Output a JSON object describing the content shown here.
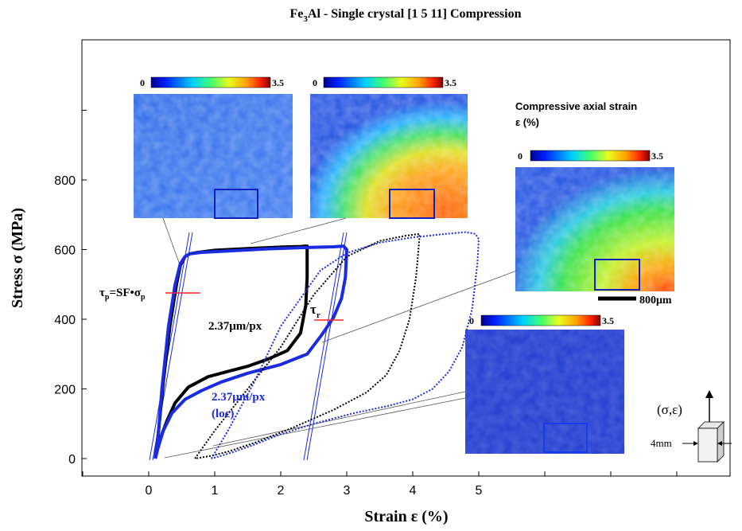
{
  "chart_data": {
    "type": "line",
    "title_main": "Fe",
    "title_sub": "3",
    "title_rest": "Al - Single crystal [1 5 11] Compression",
    "xlabel": "Strain ε (%)",
    "ylabel": "Stress σ (MPa)",
    "xlim": [
      -1,
      8.2
    ],
    "ylim": [
      -50,
      1100
    ],
    "xticks": [
      0,
      1,
      2,
      3,
      4,
      5
    ],
    "yticks": [
      0,
      200,
      400,
      600,
      800
    ],
    "series": [
      {
        "name": "2.37μm/px",
        "color": "#000000",
        "style": "solid",
        "x": [
          0.1,
          0.12,
          0.15,
          0.22,
          0.32,
          0.42,
          0.48,
          0.55,
          0.62,
          0.75,
          1.0,
          1.5,
          2.0,
          2.3,
          2.4,
          2.4,
          2.38,
          2.3,
          2.1,
          1.8,
          1.5,
          1.2,
          0.9,
          0.6,
          0.4,
          0.28,
          0.18,
          0.12,
          0.1
        ],
        "y": [
          0,
          30,
          80,
          220,
          380,
          500,
          555,
          580,
          588,
          592,
          598,
          603,
          607,
          609,
          610,
          520,
          440,
          360,
          310,
          285,
          265,
          250,
          235,
          205,
          160,
          110,
          60,
          20,
          0
        ]
      },
      {
        "name": "2.37μm/px (loc)",
        "color": "#1a2be0",
        "style": "solid",
        "x": [
          0.1,
          0.12,
          0.15,
          0.2,
          0.3,
          0.4,
          0.48,
          0.55,
          0.62,
          0.8,
          1.2,
          1.8,
          2.4,
          2.8,
          2.95,
          3.0,
          2.98,
          2.92,
          2.8,
          2.62,
          2.4,
          2.0,
          1.5,
          1.1,
          0.8,
          0.55,
          0.35,
          0.22,
          0.14,
          0.1
        ],
        "y": [
          0,
          30,
          80,
          200,
          380,
          500,
          560,
          580,
          588,
          592,
          596,
          602,
          606,
          608,
          610,
          600,
          520,
          460,
          405,
          355,
          300,
          270,
          245,
          220,
          195,
          170,
          130,
          80,
          30,
          0
        ]
      },
      {
        "name": "dotted black",
        "color": "#000000",
        "style": "dotted",
        "x": [
          0.7,
          1.0,
          1.5,
          2.0,
          2.5,
          3.0,
          3.5,
          3.9,
          4.1,
          4.1,
          4.05,
          3.95,
          3.8,
          3.6,
          3.3,
          2.8,
          2.2,
          1.6,
          1.2,
          0.95,
          0.8,
          0.7
        ],
        "y": [
          0,
          80,
          200,
          320,
          470,
          580,
          625,
          640,
          645,
          630,
          520,
          400,
          310,
          240,
          190,
          140,
          90,
          45,
          20,
          8,
          3,
          0
        ]
      },
      {
        "name": "dotted blue",
        "color": "#1a2be0",
        "style": "dotted",
        "x": [
          0.95,
          1.2,
          1.6,
          2.0,
          2.6,
          3.0,
          3.5,
          4.0,
          4.5,
          4.8,
          4.95,
          5.0,
          4.98,
          4.9,
          4.75,
          4.55,
          4.3,
          4.0,
          3.6,
          3.1,
          2.5,
          2.0,
          1.6,
          1.3,
          1.1,
          0.95
        ],
        "y": [
          0,
          80,
          220,
          380,
          540,
          590,
          620,
          635,
          645,
          650,
          645,
          630,
          560,
          430,
          320,
          250,
          200,
          170,
          150,
          130,
          100,
          70,
          40,
          20,
          8,
          0
        ]
      }
    ],
    "annotations": {
      "tau_p": "τp=SF•σp",
      "tau_p_main": "τ",
      "tau_p_sub": "p",
      "tau_p_mid": "=SF•σ",
      "tau_p_sub2": "p",
      "tau_r_main": "τ",
      "tau_r_sub": "r",
      "label_black": "2.37μm/px",
      "label_blue_1": "2.37μm/px",
      "label_blue_2": "(loc)",
      "legend_title_1": "Compressive axial strain",
      "legend_title_2": "ε (%)",
      "scale_bar": "800μm",
      "specimen_label": "(σ,ε)",
      "specimen_size": "4mm",
      "colorbar_min": "0",
      "colorbar_max": "3.5"
    },
    "colors": {
      "black": "#000000",
      "blue": "#1a2be0",
      "red_marker": "#ff2020",
      "map_low": "#1f3bd0"
    }
  }
}
